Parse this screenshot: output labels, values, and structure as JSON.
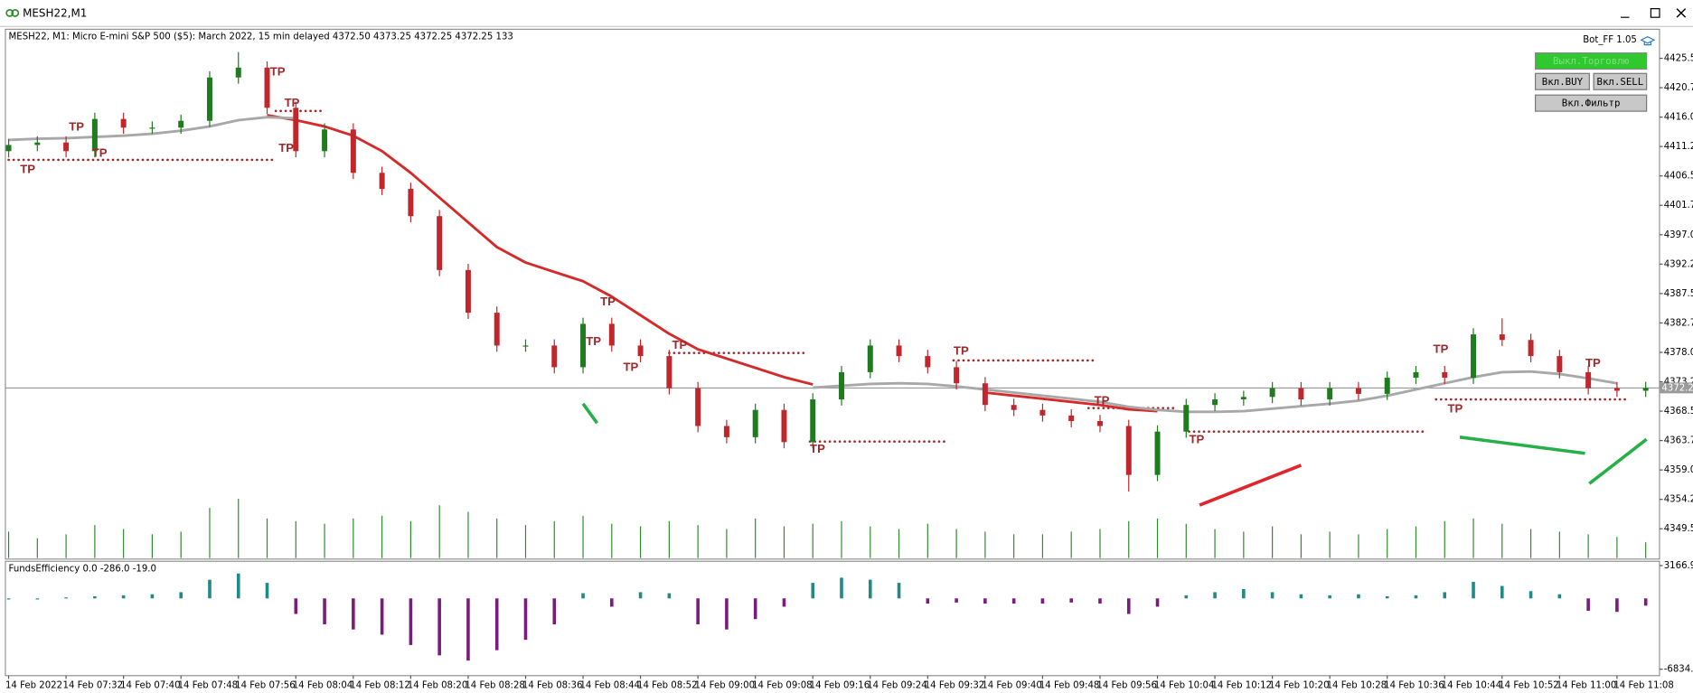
{
  "window": {
    "title": "MESH22,M1"
  },
  "chart_data": {
    "type": "candlestick",
    "title": "MESH22, M1:  Micro E-mini S&P 500 ($5): March 2022, 15 min delayed  4372.50 4373.25 4372.25 4372.25  133",
    "categories": [
      "14 Feb 2022",
      null,
      "14 Feb 07:32",
      null,
      "14 Feb 07:40",
      null,
      "14 Feb 07:48",
      null,
      "14 Feb 07:56",
      null,
      "14 Feb 08:04",
      null,
      "14 Feb 08:12",
      null,
      "14 Feb 08:20",
      null,
      "14 Feb 08:28",
      null,
      "14 Feb 08:36",
      null,
      "14 Feb 08:44",
      null,
      "14 Feb 08:52",
      null,
      "14 Feb 09:00",
      null,
      "14 Feb 09:08",
      null,
      "14 Feb 09:16",
      null,
      "14 Feb 09:24",
      null,
      "14 Feb 09:32",
      null,
      "14 Feb 09:40",
      null,
      "14 Feb 09:48",
      null,
      "14 Feb 09:56",
      null,
      "14 Feb 10:04",
      null,
      "14 Feb 10:12",
      null,
      "14 Feb 10:20",
      null,
      "14 Feb 10:28",
      null,
      "14 Feb 10:36",
      null,
      "14 Feb 10:44",
      null,
      "14 Feb 10:52",
      null,
      "14 Feb 11:00",
      null,
      "14 Feb 11:08",
      null
    ],
    "open": [
      4410.5,
      4411.5,
      4411.9,
      4410.5,
      4415.7,
      4414.3,
      4414.3,
      4415.4,
      4422.4,
      4424.0,
      4417.5,
      4410.5,
      4414.0,
      4407.0,
      4404.4,
      4400.0,
      4391.3,
      4384.4,
      4379.1,
      4379.1,
      4375.6,
      4382.6,
      4379.1,
      4377.4,
      4372.2,
      4366.1,
      4364.3,
      4368.7,
      4363.5,
      4370.4,
      4374.8,
      4379.1,
      4377.4,
      4375.6,
      4373.0,
      4369.5,
      4368.7,
      4367.8,
      4366.9,
      4366.1,
      4358.2,
      4365.2,
      4369.5,
      4370.4,
      4370.8,
      4372.2,
      4370.4,
      4372.2,
      4371.3,
      4373.9,
      4374.8,
      4373.9,
      4380.9,
      4380.0,
      4377.4,
      4374.8,
      4372.2,
      4371.8
    ],
    "high": [
      4412.5,
      4412.9,
      4412.9,
      4416.7,
      4416.7,
      4415.3,
      4416.4,
      4423.4,
      4426.5,
      4425.0,
      4418.5,
      4415.0,
      4415.0,
      4408.0,
      4405.4,
      4401.0,
      4392.3,
      4385.4,
      4380.1,
      4380.1,
      4383.6,
      4383.6,
      4380.1,
      4378.4,
      4373.2,
      4367.1,
      4369.7,
      4369.7,
      4371.4,
      4375.8,
      4380.1,
      4380.1,
      4378.4,
      4376.6,
      4374.0,
      4370.5,
      4369.7,
      4368.8,
      4367.9,
      4367.1,
      4366.2,
      4370.5,
      4371.4,
      4371.8,
      4373.2,
      4373.2,
      4373.2,
      4373.2,
      4374.9,
      4375.8,
      4375.8,
      4381.9,
      4383.5,
      4381.0,
      4378.4,
      4375.8,
      4373.2,
      4373.25
    ],
    "low": [
      4409.5,
      4410.5,
      4409.5,
      4409.5,
      4413.3,
      4413.3,
      4413.3,
      4414.4,
      4421.4,
      4416.5,
      4409.5,
      4409.5,
      4406.0,
      4403.4,
      4399.0,
      4390.3,
      4383.4,
      4378.1,
      4378.1,
      4374.6,
      4374.6,
      4378.1,
      4376.4,
      4371.2,
      4365.1,
      4363.3,
      4363.3,
      4362.5,
      4362.5,
      4369.4,
      4373.8,
      4376.4,
      4374.6,
      4372.0,
      4368.5,
      4367.7,
      4366.8,
      4365.9,
      4365.1,
      4355.5,
      4357.2,
      4364.2,
      4368.5,
      4369.4,
      4369.8,
      4369.4,
      4369.4,
      4370.3,
      4370.3,
      4372.9,
      4372.9,
      4372.9,
      4379.0,
      4376.4,
      4373.8,
      4371.2,
      4370.8,
      4370.8
    ],
    "close": [
      4411.5,
      4411.9,
      4410.5,
      4415.7,
      4414.3,
      4414.3,
      4415.4,
      4422.4,
      4424.0,
      4417.5,
      4410.5,
      4414.0,
      4407.0,
      4404.4,
      4400.0,
      4391.3,
      4384.4,
      4379.1,
      4379.1,
      4375.6,
      4382.6,
      4379.1,
      4377.4,
      4372.2,
      4366.1,
      4364.3,
      4368.7,
      4363.5,
      4370.4,
      4374.8,
      4379.1,
      4377.4,
      4375.6,
      4373.0,
      4369.5,
      4368.7,
      4367.8,
      4366.9,
      4366.1,
      4358.2,
      4365.2,
      4369.5,
      4370.4,
      4370.8,
      4372.2,
      4370.4,
      4372.2,
      4371.3,
      4373.9,
      4374.8,
      4373.9,
      4380.9,
      4380.0,
      4377.4,
      4374.8,
      4372.2,
      4371.8,
      4372.25
    ],
    "up_color": "#1e7b1e",
    "down_color": "#c0262b",
    "volume": [
      20,
      15,
      18,
      25,
      22,
      18,
      20,
      38,
      45,
      30,
      28,
      26,
      30,
      32,
      28,
      40,
      35,
      30,
      25,
      28,
      32,
      26,
      24,
      28,
      25,
      22,
      30,
      24,
      26,
      28,
      24,
      22,
      26,
      22,
      20,
      18,
      18,
      20,
      22,
      28,
      30,
      26,
      22,
      20,
      24,
      18,
      20,
      18,
      22,
      24,
      28,
      30,
      26,
      22,
      20,
      18,
      16,
      12
    ],
    "volume_color": "#2e8b2e",
    "ylim": [
      4344.6,
      4430.2
    ],
    "yticks": [
      {
        "value": 4425.5,
        "label": "4425.50"
      },
      4420.75,
      {
        "value": 4416,
        "label": "4416.00"
      },
      4411.25,
      {
        "value": 4406.5,
        "label": "4406.50"
      },
      4401.75,
      {
        "value": 4397,
        "label": "4397.00"
      },
      4392.25,
      {
        "value": 4387.5,
        "label": "4387.50"
      },
      4382.75,
      {
        "value": 4378,
        "label": "4378.00"
      },
      4373.25,
      {
        "value": 4368.5,
        "label": "4368.50"
      },
      4363.75,
      {
        "value": 4359,
        "label": "4359.00"
      },
      4354.25,
      {
        "value": 4349.5,
        "label": "4349.50"
      }
    ],
    "overlays": [
      {
        "color": "#d42a2a",
        "values": [
          null,
          null,
          null,
          null,
          null,
          null,
          null,
          null,
          null,
          4416.3,
          4415.5,
          4414.5,
          4413.0,
          4410.5,
          4407.0,
          4403.0,
          4399.0,
          4395.0,
          4392.5,
          4391.0,
          4389.5,
          4387.0,
          4384.0,
          4381.0,
          4378.5,
          4377.0,
          4375.5,
          4374.0,
          4372.8,
          null,
          null,
          null,
          null,
          null,
          4371.5,
          4371.0,
          4370.5,
          4370.0,
          4369.5,
          4368.8,
          4368.5,
          null,
          null,
          null,
          null,
          null,
          null,
          null,
          null,
          null,
          null,
          null,
          null,
          null,
          null,
          null,
          null,
          null
        ]
      },
      {
        "color": "#a8a8a8",
        "values": [
          4412.3,
          4412.5,
          4412.6,
          4412.8,
          4413.0,
          4413.3,
          4413.8,
          4414.5,
          4415.5,
          4416.0,
          4415.8,
          null,
          null,
          null,
          null,
          null,
          null,
          null,
          null,
          null,
          null,
          null,
          null,
          null,
          null,
          null,
          null,
          null,
          4372.3,
          4372.6,
          4372.9,
          4373.0,
          4372.9,
          4372.5,
          4372.0,
          4371.5,
          4371.0,
          4370.5,
          4370.0,
          4369.2,
          4368.7,
          4368.4,
          4368.4,
          4368.5,
          4368.9,
          4369.3,
          4369.7,
          4370.2,
          4371.0,
          4372.0,
          4373.0,
          4374.0,
          4374.8,
          4374.9,
          4374.5,
          4373.8,
          4373.0,
          null
        ]
      }
    ],
    "current_price": 4372.25,
    "annotations": [
      {
        "text": "TP",
        "x": 0.4,
        "y": 4407.5
      },
      {
        "text": "TP",
        "x": 2.1,
        "y": 4414.3
      },
      {
        "text": "TP",
        "x": 2.9,
        "y": 4410.1
      },
      {
        "text": "TP",
        "x": 9.1,
        "y": 4423.2
      },
      {
        "text": "TP",
        "x": 9.6,
        "y": 4418.2
      },
      {
        "text": "TP",
        "x": 9.4,
        "y": 4410.9
      },
      {
        "text": "TP",
        "x": 20.6,
        "y": 4386.1
      },
      {
        "text": "TP",
        "x": 20.1,
        "y": 4379.7
      },
      {
        "text": "TP",
        "x": 21.4,
        "y": 4375.5
      },
      {
        "text": "TP",
        "x": 23.1,
        "y": 4379.1
      },
      {
        "text": "TP",
        "x": 27.9,
        "y": 4362.3
      },
      {
        "text": "TP",
        "x": 32.9,
        "y": 4378.1
      },
      {
        "text": "TP",
        "x": 37.8,
        "y": 4370.1
      },
      {
        "text": "TP",
        "x": 41.1,
        "y": 4363.8
      },
      {
        "text": "TP",
        "x": 49.6,
        "y": 4378.4
      },
      {
        "text": "TP",
        "x": 50.1,
        "y": 4368.8
      },
      {
        "text": "TP",
        "x": 54.9,
        "y": 4376.2
      }
    ],
    "levels": [
      {
        "price": 4409.1,
        "from": 0,
        "to": 9.3
      },
      {
        "price": 4417,
        "from": 9.3,
        "to": 10.9
      },
      {
        "price": 4377.9,
        "from": 23,
        "to": 27.7
      },
      {
        "price": 4363.6,
        "from": 27.9,
        "to": 32.7
      },
      {
        "price": 4376.7,
        "from": 32.9,
        "to": 37.8
      },
      {
        "price": 4369,
        "from": 37.6,
        "to": 40.7
      },
      {
        "price": 4365.2,
        "from": 41.1,
        "to": 49.4
      },
      {
        "price": 4370.4,
        "from": 49.7,
        "to": 56.4
      }
    ],
    "level_color": "#a0282b"
  },
  "indicator": {
    "type": "bar",
    "title": "FundsEfficiency 0.0 -286.0 -19.0",
    "values": [
      0,
      0,
      100,
      200,
      300,
      400,
      600,
      1800,
      2400,
      1500,
      -1500,
      -2500,
      -3000,
      -3500,
      -4500,
      -5500,
      -6000,
      -5000,
      -4000,
      -2500,
      500,
      -800,
      600,
      500,
      -2500,
      -3000,
      -2000,
      -800,
      1500,
      2000,
      1800,
      1500,
      -500,
      -400,
      -500,
      -500,
      -500,
      -400,
      -500,
      -1500,
      -800,
      300,
      600,
      900,
      600,
      400,
      300,
      400,
      200,
      300,
      600,
      1600,
      1200,
      700,
      400,
      -1200,
      -1300,
      -700
    ],
    "pos_color": "#1f8a87",
    "neg_color": "#7b1b7e",
    "ylim": [
      -7460,
      3584
    ],
    "yticks": [
      3166.9,
      -6834.9
    ]
  },
  "panel": {
    "label": "Bot_FF 1.05",
    "buttons": [
      "Выкл.Торговлю",
      "Вкл.BUY",
      "Вкл.SELL",
      "Вкл.Фильтр"
    ]
  }
}
